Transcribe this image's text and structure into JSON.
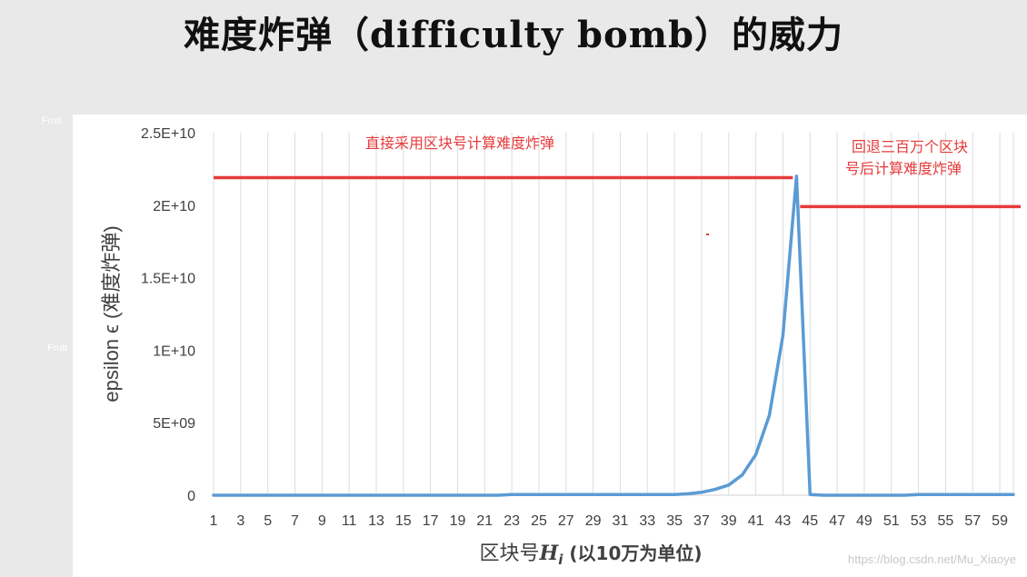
{
  "page": {
    "title": "难度炸弹（difficulty bomb）的威力",
    "watermark": "https://blog.csdn.net/Mu_Xiaoye",
    "ghost_texts": [
      "Fruti",
      "Fruti"
    ]
  },
  "chart_data": {
    "type": "line",
    "title": "",
    "xlabel": "区块号",
    "xlabel_var": "H",
    "xlabel_sub": "i",
    "xlabel_suffix": " (以10万为单位)",
    "ylabel": "epsilon ϵ  (难度炸弹)",
    "ylim": [
      0,
      25000000000
    ],
    "yticks": [
      0,
      5000000000,
      10000000000,
      15000000000,
      20000000000,
      25000000000
    ],
    "ytick_labels": [
      "0",
      "5E+09",
      "1E+10",
      "1.5E+10",
      "2E+10",
      "2.5E+10"
    ],
    "xlim": [
      1,
      60
    ],
    "xtick_labels": [
      "1",
      "3",
      "5",
      "7",
      "9",
      "11",
      "13",
      "15",
      "17",
      "19",
      "21",
      "23",
      "25",
      "27",
      "29",
      "31",
      "33",
      "35",
      "37",
      "39",
      "41",
      "43",
      "45",
      "47",
      "49",
      "51",
      "53",
      "55",
      "57",
      "59"
    ],
    "grid": true,
    "series": [
      {
        "color": "#5b9bd5",
        "x": [
          1,
          2,
          3,
          4,
          5,
          6,
          7,
          8,
          9,
          10,
          11,
          12,
          13,
          14,
          15,
          16,
          17,
          18,
          19,
          20,
          21,
          22,
          23,
          24,
          25,
          26,
          27,
          28,
          29,
          30,
          31,
          32,
          33,
          34,
          35,
          36,
          37,
          38,
          39,
          40,
          41,
          42,
          43,
          44,
          45,
          46,
          47,
          48,
          49,
          50,
          51,
          52,
          53,
          54,
          55,
          56,
          57,
          58,
          59,
          60
        ],
        "values": [
          0,
          0,
          0,
          0,
          0,
          0,
          0,
          0,
          0,
          0,
          0,
          0,
          0,
          0,
          0,
          0,
          0,
          0,
          0,
          0,
          0,
          0,
          50000000,
          50000000,
          50000000,
          50000000,
          50000000,
          50000000,
          50000000,
          50000000,
          50000000,
          50000000,
          50000000,
          50000000,
          50000000,
          100000000,
          200000000,
          400000000,
          700000000,
          1400000000,
          2800000000,
          5500000000,
          11000000000,
          22000000000,
          50000000,
          0,
          0,
          0,
          0,
          0,
          0,
          0,
          50000000,
          50000000,
          50000000,
          50000000,
          50000000,
          50000000,
          50000000,
          50000000
        ]
      }
    ],
    "reference_lines": [
      {
        "label": "直接采用区块号计算难度炸弹",
        "y": 21900000000,
        "color": "#e63b3b"
      },
      {
        "label_lines": [
          "回退三百万个区块",
          "号后计算难度炸弹"
        ],
        "y": 19900000000,
        "color": "#e63b3b"
      }
    ]
  }
}
